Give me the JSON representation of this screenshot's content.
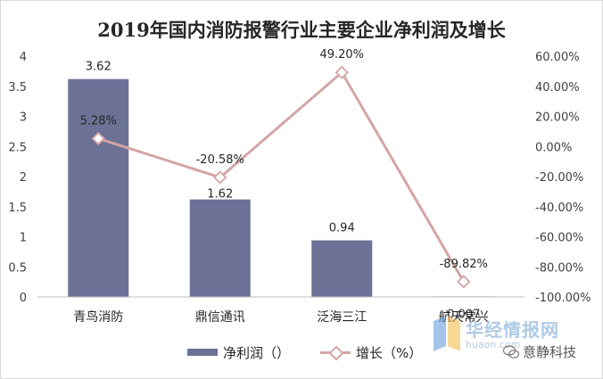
{
  "chart_data": {
    "type": "bar+line",
    "title": "2019年国内消防报警行业主要企业净利润及增长",
    "categories": [
      "青鸟消防",
      "鼎信通讯",
      "泛海三江",
      "航天常兴"
    ],
    "series": [
      {
        "name": "净利润（）",
        "type": "bar",
        "axis": "left",
        "values": [
          3.62,
          1.62,
          0.94,
          0.007
        ],
        "labels": [
          "3.62",
          "1.62",
          "0.94",
          "0.007"
        ],
        "color": "#6b7296"
      },
      {
        "name": "增长（%）",
        "type": "line",
        "axis": "right",
        "values": [
          5.28,
          -20.58,
          49.2,
          -89.82
        ],
        "labels": [
          "5.28%",
          "-20.58%",
          "49.20%",
          "-89.82%"
        ],
        "color": "#d4a5a5"
      }
    ],
    "y_left": {
      "min": 0,
      "max": 4,
      "step": 0.5,
      "ticks": [
        "0",
        "0.5",
        "1",
        "1.5",
        "2",
        "2.5",
        "3",
        "3.5",
        "4"
      ]
    },
    "y_right": {
      "min": -100,
      "max": 60,
      "step": 20,
      "ticks": [
        "-100.00%",
        "-80.00%",
        "-60.00%",
        "-40.00%",
        "-20.00%",
        "0.00%",
        "20.00%",
        "40.00%",
        "60.00%"
      ]
    },
    "grid": false,
    "legend_position": "bottom"
  },
  "legend": {
    "bar_label": "净利润（）",
    "line_label": "增长（%）"
  },
  "watermark": {
    "brand": "华经情报网",
    "url": "huaon.com",
    "account": "意静科技"
  }
}
